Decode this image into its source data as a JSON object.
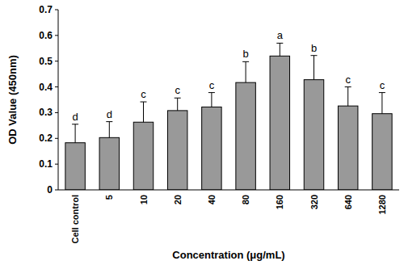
{
  "chart_data": {
    "type": "bar",
    "x_label": "Concentration (μg/mL)",
    "y_label": "OD Value (450nm)",
    "categories": [
      "Cell control",
      "5",
      "10",
      "20",
      "40",
      "80",
      "160",
      "320",
      "640",
      "1280"
    ],
    "values": [
      0.183,
      0.203,
      0.263,
      0.308,
      0.322,
      0.417,
      0.52,
      0.428,
      0.326,
      0.296
    ],
    "errors": [
      0.072,
      0.062,
      0.079,
      0.049,
      0.056,
      0.081,
      0.05,
      0.094,
      0.074,
      0.082
    ],
    "annotations": [
      "d",
      "d",
      "c",
      "c",
      "c",
      "b",
      "a",
      "b",
      "c",
      "c"
    ],
    "color": "#999999",
    "ylim": [
      0,
      0.7
    ],
    "yticks": [
      0,
      0.1,
      0.2,
      0.3,
      0.4,
      0.5,
      0.6,
      0.7
    ],
    "grid": false
  }
}
